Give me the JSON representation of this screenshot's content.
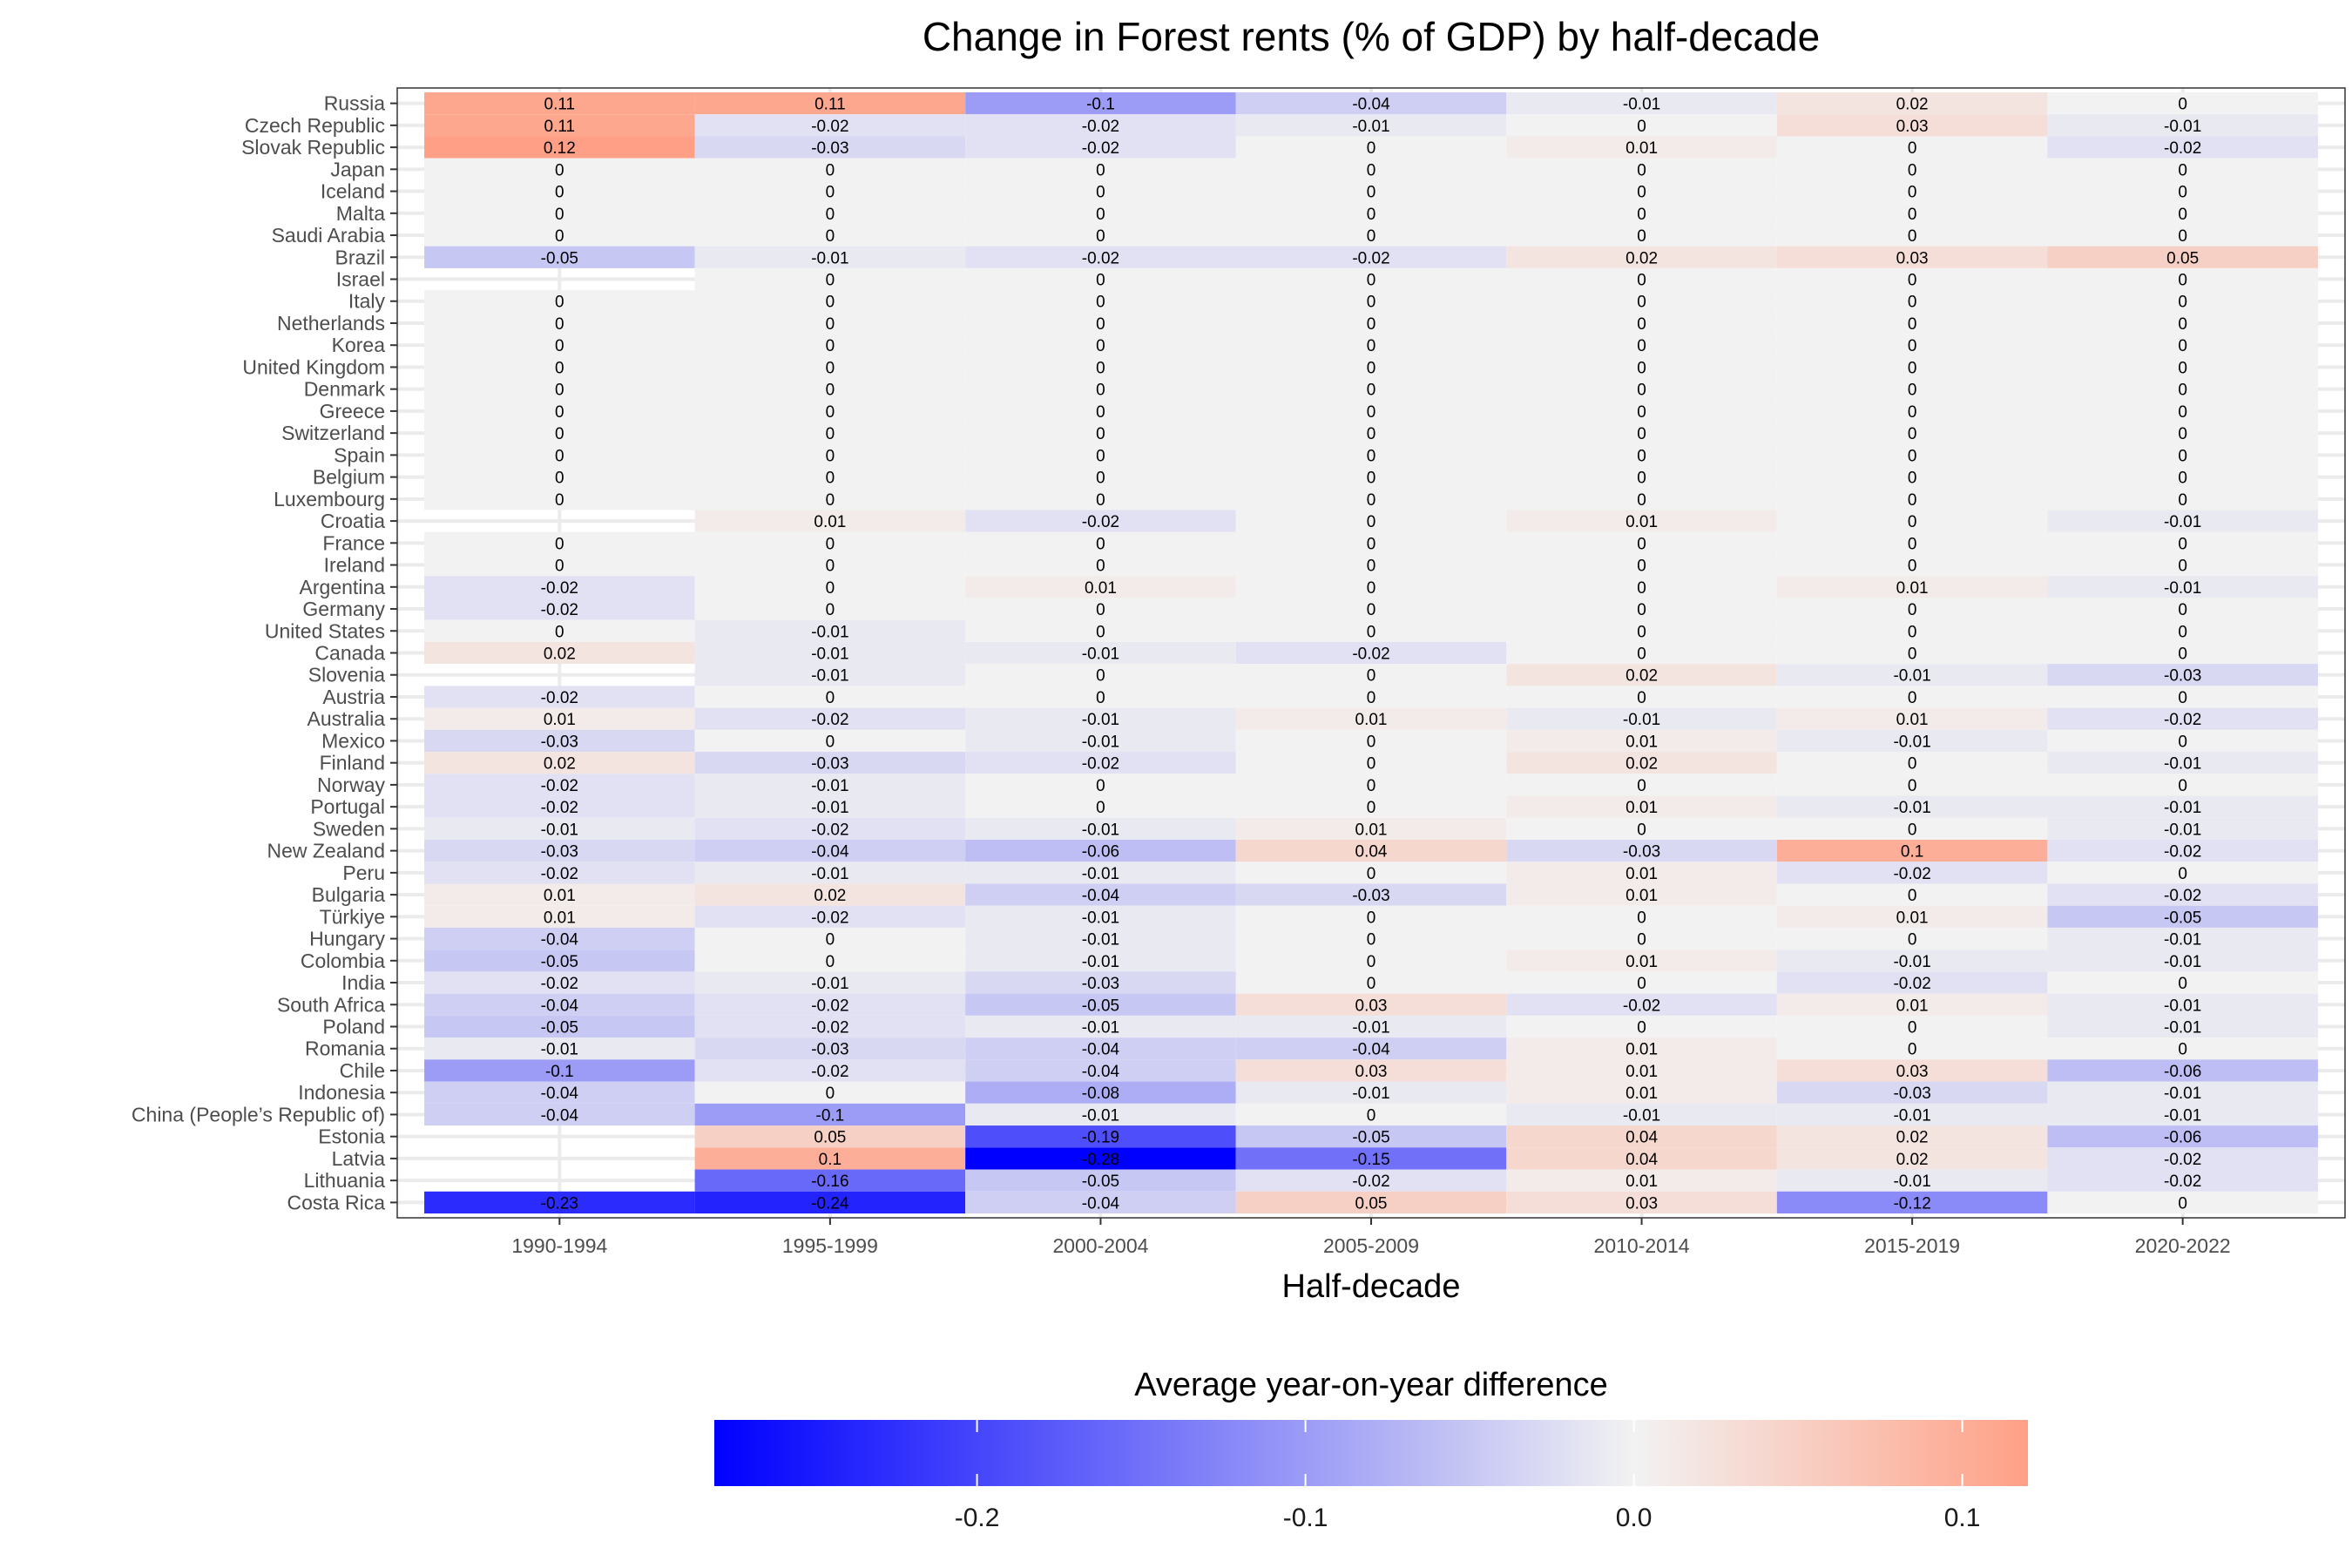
{
  "chart_data": {
    "type": "heatmap",
    "title": "Change in Forest rents (% of GDP) by half-decade",
    "xlabel": "Half-decade",
    "ylabel": "",
    "x_categories": [
      "1990-1994",
      "1995-1999",
      "2000-2004",
      "2005-2009",
      "2010-2014",
      "2015-2019",
      "2020-2022"
    ],
    "y_categories": [
      "Russia",
      "Czech Republic",
      "Slovak Republic",
      "Japan",
      "Iceland",
      "Malta",
      "Saudi Arabia",
      "Brazil",
      "Israel",
      "Italy",
      "Netherlands",
      "Korea",
      "United Kingdom",
      "Denmark",
      "Greece",
      "Switzerland",
      "Spain",
      "Belgium",
      "Luxembourg",
      "Croatia",
      "France",
      "Ireland",
      "Argentina",
      "Germany",
      "United States",
      "Canada",
      "Slovenia",
      "Austria",
      "Australia",
      "Mexico",
      "Finland",
      "Norway",
      "Portugal",
      "Sweden",
      "New Zealand",
      "Peru",
      "Bulgaria",
      "Türkiye",
      "Hungary",
      "Colombia",
      "India",
      "South Africa",
      "Poland",
      "Romania",
      "Chile",
      "Indonesia",
      "China (People’s Republic of)",
      "Estonia",
      "Latvia",
      "Lithuania",
      "Costa Rica"
    ],
    "values": [
      [
        0.11,
        0.11,
        -0.1,
        -0.04,
        -0.01,
        0.02,
        0
      ],
      [
        0.11,
        -0.02,
        -0.02,
        -0.01,
        0,
        0.03,
        -0.01
      ],
      [
        0.12,
        -0.03,
        -0.02,
        0,
        0.01,
        0,
        -0.02
      ],
      [
        0,
        0,
        0,
        0,
        0,
        0,
        0
      ],
      [
        0,
        0,
        0,
        0,
        0,
        0,
        0
      ],
      [
        0,
        0,
        0,
        0,
        0,
        0,
        0
      ],
      [
        0,
        0,
        0,
        0,
        0,
        0,
        0
      ],
      [
        -0.05,
        -0.01,
        -0.02,
        -0.02,
        0.02,
        0.03,
        0.05
      ],
      [
        null,
        0,
        0,
        0,
        0,
        0,
        0
      ],
      [
        0,
        0,
        0,
        0,
        0,
        0,
        0
      ],
      [
        0,
        0,
        0,
        0,
        0,
        0,
        0
      ],
      [
        0,
        0,
        0,
        0,
        0,
        0,
        0
      ],
      [
        0,
        0,
        0,
        0,
        0,
        0,
        0
      ],
      [
        0,
        0,
        0,
        0,
        0,
        0,
        0
      ],
      [
        0,
        0,
        0,
        0,
        0,
        0,
        0
      ],
      [
        0,
        0,
        0,
        0,
        0,
        0,
        0
      ],
      [
        0,
        0,
        0,
        0,
        0,
        0,
        0
      ],
      [
        0,
        0,
        0,
        0,
        0,
        0,
        0
      ],
      [
        0,
        0,
        0,
        0,
        0,
        0,
        0
      ],
      [
        null,
        0.01,
        -0.02,
        0,
        0.01,
        0,
        -0.01
      ],
      [
        0,
        0,
        0,
        0,
        0,
        0,
        0
      ],
      [
        0,
        0,
        0,
        0,
        0,
        0,
        0
      ],
      [
        -0.02,
        0,
        0.01,
        0,
        0,
        0.01,
        -0.01
      ],
      [
        -0.02,
        0,
        0,
        0,
        0,
        0,
        0
      ],
      [
        0,
        -0.01,
        0,
        0,
        0,
        0,
        0
      ],
      [
        0.02,
        -0.01,
        -0.01,
        -0.02,
        0,
        0,
        0
      ],
      [
        null,
        -0.01,
        0,
        0,
        0.02,
        -0.01,
        -0.03
      ],
      [
        -0.02,
        0,
        0,
        0,
        0,
        0,
        0
      ],
      [
        0.01,
        -0.02,
        -0.01,
        0.01,
        -0.01,
        0.01,
        -0.02
      ],
      [
        -0.03,
        0,
        -0.01,
        0,
        0.01,
        -0.01,
        0
      ],
      [
        0.02,
        -0.03,
        -0.02,
        0,
        0.02,
        0,
        -0.01
      ],
      [
        -0.02,
        -0.01,
        0,
        0,
        0,
        0,
        0
      ],
      [
        -0.02,
        -0.01,
        0,
        0,
        0.01,
        -0.01,
        -0.01
      ],
      [
        -0.01,
        -0.02,
        -0.01,
        0.01,
        0,
        0,
        -0.01
      ],
      [
        -0.03,
        -0.04,
        -0.06,
        0.04,
        -0.03,
        0.1,
        -0.02
      ],
      [
        -0.02,
        -0.01,
        -0.01,
        0,
        0.01,
        -0.02,
        0
      ],
      [
        0.01,
        0.02,
        -0.04,
        -0.03,
        0.01,
        0,
        -0.02
      ],
      [
        0.01,
        -0.02,
        -0.01,
        0,
        0,
        0.01,
        -0.05
      ],
      [
        -0.04,
        0,
        -0.01,
        0,
        0,
        0,
        -0.01
      ],
      [
        -0.05,
        0,
        -0.01,
        0,
        0.01,
        -0.01,
        -0.01
      ],
      [
        -0.02,
        -0.01,
        -0.03,
        0,
        0,
        -0.02,
        0
      ],
      [
        -0.04,
        -0.02,
        -0.05,
        0.03,
        -0.02,
        0.01,
        -0.01
      ],
      [
        -0.05,
        -0.02,
        -0.01,
        -0.01,
        0,
        0,
        -0.01
      ],
      [
        -0.01,
        -0.03,
        -0.04,
        -0.04,
        0.01,
        0,
        0
      ],
      [
        -0.1,
        -0.02,
        -0.04,
        0.03,
        0.01,
        0.03,
        -0.06
      ],
      [
        -0.04,
        0,
        -0.08,
        -0.01,
        0.01,
        -0.03,
        -0.01
      ],
      [
        -0.04,
        -0.1,
        -0.01,
        0,
        -0.01,
        -0.01,
        -0.01
      ],
      [
        null,
        0.05,
        -0.19,
        -0.05,
        0.04,
        0.02,
        -0.06
      ],
      [
        null,
        0.1,
        -0.28,
        -0.15,
        0.04,
        0.02,
        -0.02
      ],
      [
        null,
        -0.16,
        -0.05,
        -0.02,
        0.01,
        -0.01,
        -0.02
      ],
      [
        -0.23,
        -0.24,
        -0.04,
        0.05,
        0.03,
        -0.12,
        0
      ]
    ],
    "colorscale": {
      "title": "Average year-on-year difference",
      "min": -0.28,
      "mid": 0,
      "max": 0.12,
      "low_color": "#0000ff",
      "mid_color": "#f2f2f2",
      "high_color": "#ffa086",
      "ticks": [
        -0.2,
        -0.1,
        0.0,
        0.1
      ],
      "tick_labels": [
        "-0.2",
        "-0.1",
        "0.0",
        "0.1"
      ]
    },
    "legend_position": "bottom",
    "grid": true
  }
}
